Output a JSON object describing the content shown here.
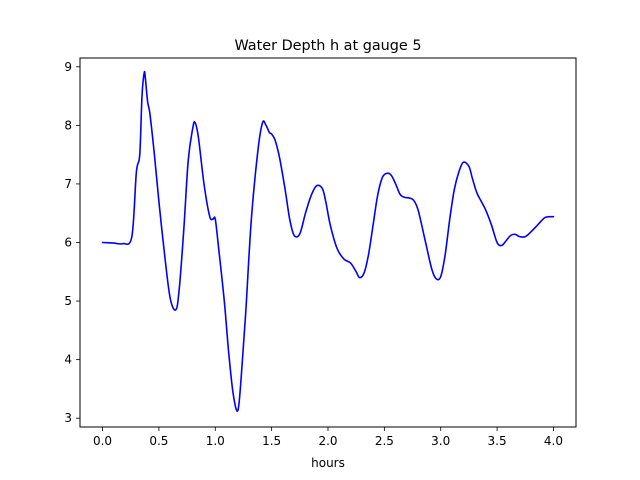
{
  "chart_data": {
    "type": "line",
    "title": "Water Depth h at gauge 5",
    "xlabel": "hours",
    "ylabel": "",
    "xlim": [
      -0.2,
      4.2
    ],
    "ylim": [
      2.85,
      9.15
    ],
    "grid": false,
    "legend": "none",
    "x_ticks": [
      0.0,
      0.5,
      1.0,
      1.5,
      2.0,
      2.5,
      3.0,
      3.5,
      4.0
    ],
    "x_tick_labels": [
      "0.0",
      "0.5",
      "1.0",
      "1.5",
      "2.0",
      "2.5",
      "3.0",
      "3.5",
      "4.0"
    ],
    "y_ticks": [
      3,
      4,
      5,
      6,
      7,
      8,
      9
    ],
    "y_tick_labels": [
      "3",
      "4",
      "5",
      "6",
      "7",
      "8",
      "9"
    ],
    "series": [
      {
        "color": "#0000ff",
        "x": [
          0.0,
          0.1,
          0.18,
          0.26,
          0.3,
          0.33,
          0.35,
          0.37,
          0.38,
          0.4,
          0.42,
          0.46,
          0.5,
          0.55,
          0.6,
          0.65,
          0.68,
          0.72,
          0.76,
          0.8,
          0.82,
          0.85,
          0.9,
          0.95,
          0.98,
          1.0,
          1.03,
          1.08,
          1.12,
          1.16,
          1.2,
          1.23,
          1.27,
          1.32,
          1.38,
          1.42,
          1.45,
          1.48,
          1.5,
          1.53,
          1.57,
          1.62,
          1.66,
          1.7,
          1.75,
          1.8,
          1.85,
          1.9,
          1.95,
          1.98,
          2.02,
          2.08,
          2.14,
          2.2,
          2.25,
          2.28,
          2.32,
          2.36,
          2.4,
          2.44,
          2.48,
          2.52,
          2.56,
          2.6,
          2.64,
          2.68,
          2.72,
          2.76,
          2.8,
          2.86,
          2.92,
          2.96,
          3.0,
          3.04,
          3.08,
          3.12,
          3.16,
          3.2,
          3.25,
          3.28,
          3.32,
          3.36,
          3.4,
          3.45,
          3.5,
          3.54,
          3.58,
          3.62,
          3.66,
          3.7,
          3.75,
          3.8,
          3.86,
          3.92,
          3.96,
          4.0
        ],
        "y": [
          6.0,
          5.99,
          5.98,
          6.1,
          7.2,
          7.5,
          8.5,
          8.9,
          8.8,
          8.4,
          8.2,
          7.5,
          6.7,
          5.8,
          5.05,
          4.85,
          5.2,
          6.2,
          7.4,
          7.95,
          8.05,
          7.8,
          7.0,
          6.45,
          6.4,
          6.4,
          5.9,
          5.0,
          4.1,
          3.4,
          3.13,
          3.7,
          4.8,
          6.4,
          7.6,
          8.05,
          8.0,
          7.88,
          7.85,
          7.75,
          7.45,
          6.9,
          6.4,
          6.12,
          6.15,
          6.5,
          6.8,
          6.97,
          6.92,
          6.7,
          6.3,
          5.9,
          5.72,
          5.65,
          5.5,
          5.4,
          5.48,
          5.8,
          6.3,
          6.8,
          7.1,
          7.18,
          7.15,
          7.0,
          6.82,
          6.77,
          6.76,
          6.72,
          6.55,
          6.05,
          5.55,
          5.38,
          5.42,
          5.8,
          6.4,
          6.9,
          7.2,
          7.37,
          7.3,
          7.1,
          6.85,
          6.7,
          6.55,
          6.3,
          6.0,
          5.95,
          6.03,
          6.12,
          6.14,
          6.1,
          6.1,
          6.18,
          6.3,
          6.42,
          6.44,
          6.44
        ]
      }
    ]
  }
}
